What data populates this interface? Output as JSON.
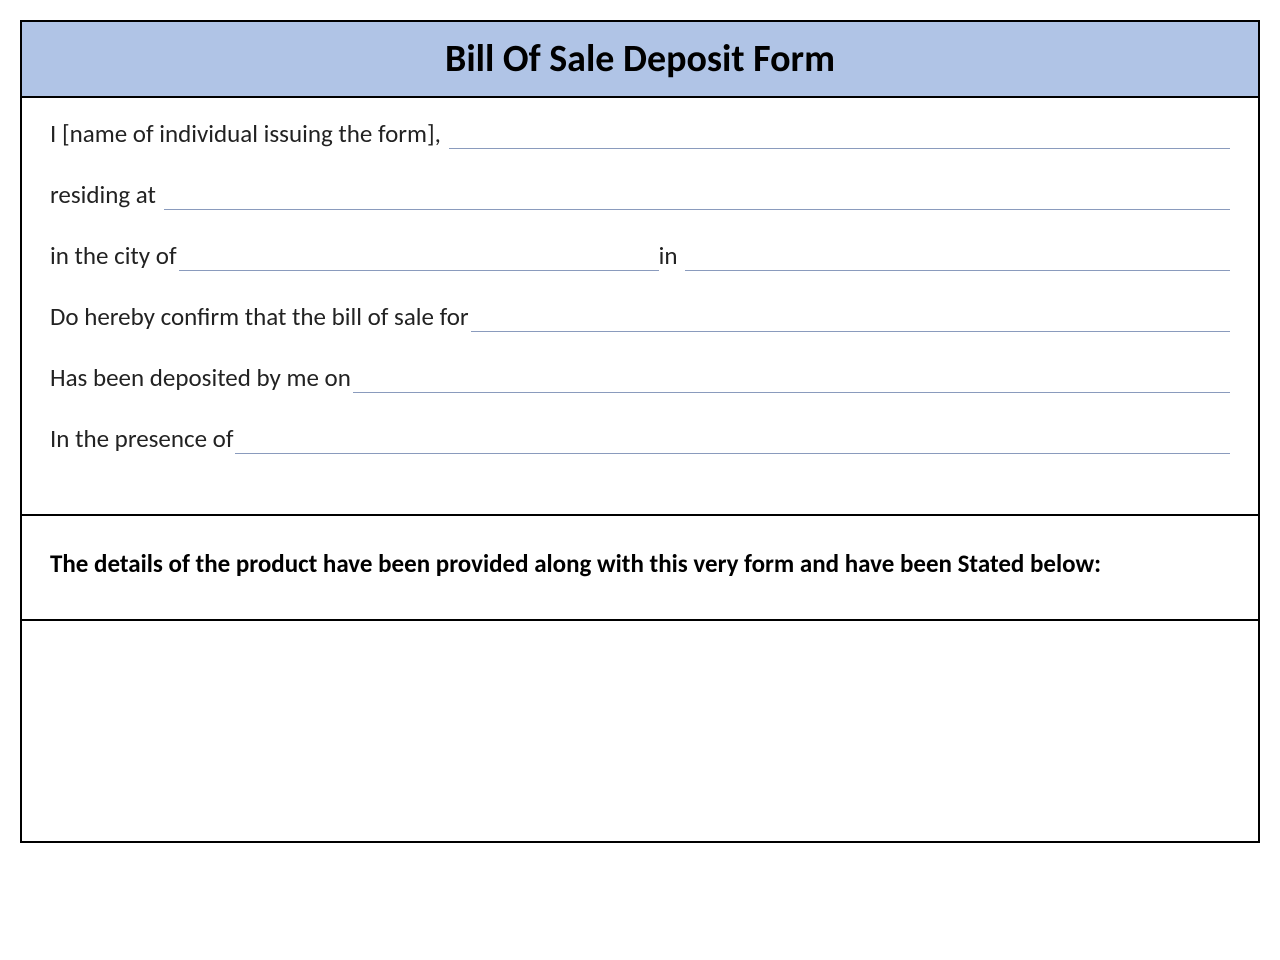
{
  "colors": {
    "title_bg": "#b0c4e6",
    "border": "#000000",
    "underline": "#8a9bbd",
    "text": "#222222"
  },
  "title": "Bill Of Sale Deposit Form",
  "lines": {
    "issuer_prefix": "I [name of individual issuing the form], ",
    "residing": "residing at ",
    "city_prefix": "in the city of",
    "in_label": "in ",
    "confirm": "Do hereby confirm that the bill of sale for",
    "deposited": "Has been deposited by me on",
    "presence": "In the presence of"
  },
  "details_heading": "The details of the product have been provided along with this very form and have been Stated below:"
}
